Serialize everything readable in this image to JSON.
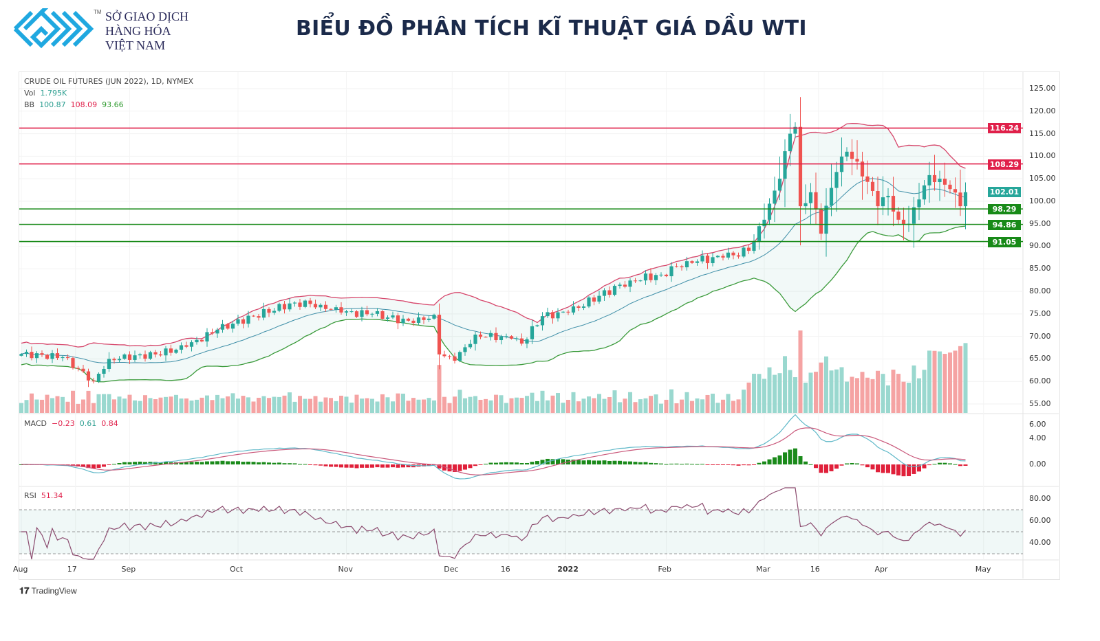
{
  "header": {
    "brand_lines": [
      "SỞ GIAO DỊCH",
      "HÀNG HÓA",
      "VIỆT NAM"
    ],
    "brand_tm": "TM",
    "title": "BIỂU ĐỒ PHÂN TÍCH KĨ THUẬT GIÁ DẦU WTI",
    "logo_color": "#1fa8e0"
  },
  "legend": {
    "symbol": "CRUDE OIL FUTURES (JUN 2022), 1D, NYMEX",
    "vol_label": "Vol",
    "vol_value": "1.795K",
    "bb_label": "BB",
    "bb_basis": "100.87",
    "bb_upper": "108.09",
    "bb_lower": "93.66",
    "macd_label": "MACD",
    "macd_hist": "−0.23",
    "macd_line": "0.61",
    "macd_signal": "0.84",
    "rsi_label": "RSI",
    "rsi_value": "51.34"
  },
  "footer": {
    "tradingview": "TradingView"
  },
  "chart_data": {
    "type": "candlestick",
    "title": "CRUDE OIL FUTURES (JUN 2022), 1D, NYMEX",
    "ylim": [
      53,
      127
    ],
    "y_ticks": [
      "125.00",
      "120.00",
      "115.00",
      "110.00",
      "105.00",
      "100.00",
      "95.00",
      "90.00",
      "85.00",
      "80.00",
      "75.00",
      "70.00",
      "65.00",
      "60.00",
      "55.00"
    ],
    "y_tick_values": [
      125,
      120,
      115,
      110,
      105,
      100,
      95,
      90,
      85,
      80,
      75,
      70,
      65,
      60,
      55
    ],
    "x_ticks": [
      {
        "bar": 0,
        "label": "Aug"
      },
      {
        "bar": 10.5,
        "label": "17"
      },
      {
        "bar": 21,
        "label": "Sep"
      },
      {
        "bar": 42,
        "label": "Oct"
      },
      {
        "bar": 63,
        "label": "Nov"
      },
      {
        "bar": 83.5,
        "label": "Dec"
      },
      {
        "bar": 94.5,
        "label": "16"
      },
      {
        "bar": 105.5,
        "label": "2022"
      },
      {
        "bar": 125,
        "label": "Feb"
      },
      {
        "bar": 144,
        "label": "Mar"
      },
      {
        "bar": 154.5,
        "label": "16"
      },
      {
        "bar": 167,
        "label": "Apr"
      },
      {
        "bar": 186.5,
        "label": "May"
      }
    ],
    "close_anchors": [
      [
        0,
        66.1
      ],
      [
        8,
        65.4
      ],
      [
        14,
        60
      ],
      [
        17,
        65
      ],
      [
        26,
        66
      ],
      [
        32,
        67.7
      ],
      [
        38,
        71.5
      ],
      [
        45,
        74.5
      ],
      [
        53,
        77.5
      ],
      [
        58,
        77
      ],
      [
        62,
        75.3
      ],
      [
        68,
        75
      ],
      [
        76,
        73
      ],
      [
        80,
        74.8
      ],
      [
        81,
        66
      ],
      [
        84,
        64.6
      ],
      [
        88,
        70.4
      ],
      [
        95,
        69.5
      ],
      [
        97,
        68.4
      ],
      [
        101,
        74.5
      ],
      [
        106,
        75.3
      ],
      [
        112,
        79
      ],
      [
        118,
        82.4
      ],
      [
        124,
        83.7
      ],
      [
        129,
        86.7
      ],
      [
        136,
        87.5
      ],
      [
        141,
        89
      ],
      [
        144,
        95.9
      ],
      [
        147,
        105
      ],
      [
        149,
        115
      ],
      [
        150,
        116.5
      ],
      [
        151,
        98.9
      ],
      [
        153,
        102
      ],
      [
        155,
        92.8
      ],
      [
        156,
        99
      ],
      [
        158,
        106.5
      ],
      [
        160,
        111
      ],
      [
        162,
        108.8
      ],
      [
        164,
        104.3
      ],
      [
        166,
        98.9
      ],
      [
        168,
        101.2
      ],
      [
        170,
        95.9
      ],
      [
        172,
        95
      ],
      [
        174,
        100.4
      ],
      [
        176,
        105.8
      ],
      [
        178,
        105
      ],
      [
        180,
        102.7
      ],
      [
        182,
        98.9
      ],
      [
        183,
        102.01
      ]
    ],
    "levels": [
      {
        "value": 116.24,
        "label": "116.24",
        "color": "#e0204a"
      },
      {
        "value": 108.29,
        "label": "108.29",
        "color": "#e0204a"
      },
      {
        "value": 98.29,
        "label": "98.29",
        "color": "#188a18"
      },
      {
        "value": 94.86,
        "label": "94.86",
        "color": "#188a18"
      },
      {
        "value": 91.05,
        "label": "91.05",
        "color": "#188a18"
      }
    ],
    "last_price": {
      "value": 102.01,
      "label": "102.01",
      "color": "#26a69a"
    },
    "macd_ticks": [
      "6.00",
      "4.00",
      "0.00"
    ],
    "macd_tick_values": [
      6,
      4,
      0
    ],
    "rsi_ticks": [
      "80.00",
      "60.00",
      "40.00"
    ],
    "rsi_tick_values": [
      80,
      60,
      40
    ],
    "colors": {
      "up": "#26a69a",
      "down": "#ef5350",
      "bb_upper": "#d6456a",
      "bb_lower": "#3a9a3a",
      "bb_basis": "#3f8fa8",
      "macd": "#5fb8c8",
      "signal": "#c9577a",
      "hist_up": "#1a8a1a",
      "hist_down": "#e0203a",
      "rsi": "#8b4a6e"
    }
  }
}
